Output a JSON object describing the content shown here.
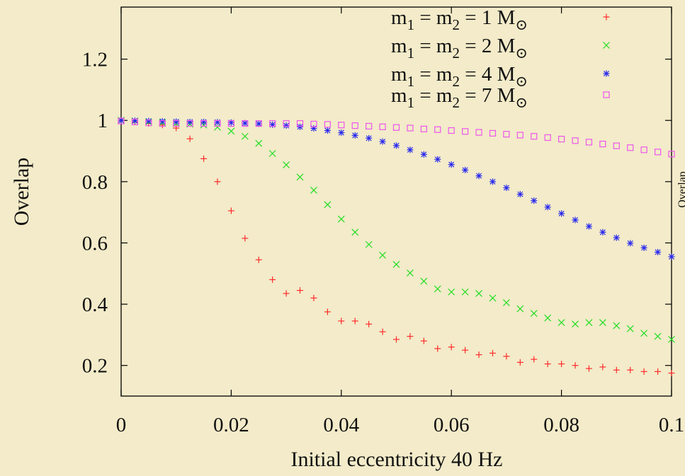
{
  "chart_data": {
    "type": "scatter",
    "xlabel": "Initial eccentricity 40 Hz",
    "ylabel": "Overlap",
    "right_clipped_label": "Overlap",
    "xlim": [
      0,
      0.1
    ],
    "ylim": [
      0.1,
      1.37
    ],
    "x_ticks": [
      0,
      0.02,
      0.04,
      0.06,
      0.08,
      0.1
    ],
    "x_tick_labels": [
      "0",
      "0.02",
      "0.04",
      "0.06",
      "0.08",
      "0.1"
    ],
    "y_ticks": [
      0.2,
      0.4,
      0.6,
      0.8,
      1.0,
      1.2
    ],
    "y_tick_labels": [
      "0.2",
      "0.4",
      "0.6",
      "0.8",
      "1",
      "1.2"
    ],
    "legend_position": "top-right",
    "series": [
      {
        "name": "m1 = m2 = 1 M⊙",
        "legend": {
          "a": "m",
          "s1": "1",
          "mid": " = m",
          "s2": "2",
          "rest": " = 1 M",
          "sun": "⊙"
        },
        "marker": "plus",
        "color": "#ff2a2a",
        "x": [
          0,
          0.0025,
          0.005,
          0.0075,
          0.01,
          0.0125,
          0.015,
          0.0175,
          0.02,
          0.0225,
          0.025,
          0.0275,
          0.03,
          0.0325,
          0.035,
          0.0375,
          0.04,
          0.0425,
          0.045,
          0.0475,
          0.05,
          0.0525,
          0.055,
          0.0575,
          0.06,
          0.0625,
          0.065,
          0.0675,
          0.07,
          0.0725,
          0.075,
          0.0775,
          0.08,
          0.0825,
          0.085,
          0.0875,
          0.09,
          0.0925,
          0.095,
          0.0975,
          0.1
        ],
        "y": [
          1.0,
          0.995,
          0.99,
          0.985,
          0.975,
          0.94,
          0.875,
          0.8,
          0.705,
          0.615,
          0.545,
          0.48,
          0.435,
          0.445,
          0.42,
          0.375,
          0.345,
          0.345,
          0.335,
          0.31,
          0.285,
          0.295,
          0.28,
          0.255,
          0.26,
          0.25,
          0.235,
          0.24,
          0.23,
          0.21,
          0.22,
          0.205,
          0.205,
          0.2,
          0.19,
          0.195,
          0.185,
          0.185,
          0.18,
          0.18,
          0.175
        ]
      },
      {
        "name": "m1 = m2 = 2 M⊙",
        "legend": {
          "a": "m",
          "s1": "1",
          "mid": " = m",
          "s2": "2",
          "rest": " = 2 M",
          "sun": "⊙"
        },
        "marker": "cross",
        "color": "#22dd22",
        "x": [
          0,
          0.0025,
          0.005,
          0.0075,
          0.01,
          0.0125,
          0.015,
          0.0175,
          0.02,
          0.0225,
          0.025,
          0.0275,
          0.03,
          0.0325,
          0.035,
          0.0375,
          0.04,
          0.0425,
          0.045,
          0.0475,
          0.05,
          0.0525,
          0.055,
          0.0575,
          0.06,
          0.0625,
          0.065,
          0.0675,
          0.07,
          0.0725,
          0.075,
          0.0775,
          0.08,
          0.0825,
          0.085,
          0.0875,
          0.09,
          0.0925,
          0.095,
          0.0975,
          0.1
        ],
        "y": [
          1.0,
          0.998,
          0.995,
          0.993,
          0.99,
          0.988,
          0.985,
          0.978,
          0.965,
          0.948,
          0.925,
          0.892,
          0.855,
          0.815,
          0.772,
          0.725,
          0.678,
          0.635,
          0.595,
          0.56,
          0.53,
          0.502,
          0.475,
          0.45,
          0.44,
          0.44,
          0.435,
          0.42,
          0.405,
          0.385,
          0.37,
          0.355,
          0.34,
          0.335,
          0.34,
          0.34,
          0.33,
          0.32,
          0.305,
          0.295,
          0.285
        ]
      },
      {
        "name": "m1 = m2 = 4 M⊙",
        "legend": {
          "a": "m",
          "s1": "1",
          "mid": " = m",
          "s2": "2",
          "rest": " = 4 M",
          "sun": "⊙"
        },
        "marker": "star",
        "color": "#2828ee",
        "x": [
          0,
          0.0025,
          0.005,
          0.0075,
          0.01,
          0.0125,
          0.015,
          0.0175,
          0.02,
          0.0225,
          0.025,
          0.0275,
          0.03,
          0.0325,
          0.035,
          0.0375,
          0.04,
          0.0425,
          0.045,
          0.0475,
          0.05,
          0.0525,
          0.055,
          0.0575,
          0.06,
          0.0625,
          0.065,
          0.0675,
          0.07,
          0.0725,
          0.075,
          0.0775,
          0.08,
          0.0825,
          0.085,
          0.0875,
          0.09,
          0.0925,
          0.095,
          0.0975,
          0.1
        ],
        "y": [
          1.0,
          0.999,
          0.998,
          0.997,
          0.996,
          0.995,
          0.995,
          0.994,
          0.993,
          0.991,
          0.989,
          0.986,
          0.983,
          0.979,
          0.974,
          0.967,
          0.96,
          0.951,
          0.942,
          0.931,
          0.918,
          0.904,
          0.889,
          0.873,
          0.856,
          0.838,
          0.819,
          0.8,
          0.78,
          0.759,
          0.738,
          0.717,
          0.696,
          0.675,
          0.654,
          0.635,
          0.617,
          0.599,
          0.584,
          0.57,
          0.555
        ]
      },
      {
        "name": "m1 = m2 = 7 M⊙",
        "legend": {
          "a": "m",
          "s1": "1",
          "mid": " = m",
          "s2": "2",
          "rest": " = 7 M",
          "sun": "⊙"
        },
        "marker": "square",
        "color": "#ee55ee",
        "x": [
          0,
          0.0025,
          0.005,
          0.0075,
          0.01,
          0.0125,
          0.015,
          0.0175,
          0.02,
          0.0225,
          0.025,
          0.0275,
          0.03,
          0.0325,
          0.035,
          0.0375,
          0.04,
          0.0425,
          0.045,
          0.0475,
          0.05,
          0.0525,
          0.055,
          0.0575,
          0.06,
          0.0625,
          0.065,
          0.0675,
          0.07,
          0.0725,
          0.075,
          0.0775,
          0.08,
          0.0825,
          0.085,
          0.0875,
          0.09,
          0.0925,
          0.095,
          0.0975,
          0.1
        ],
        "y": [
          0.998,
          0.995,
          0.992,
          0.99,
          0.99,
          0.99,
          0.99,
          0.99,
          0.99,
          0.99,
          0.99,
          0.99,
          0.99,
          0.99,
          0.988,
          0.987,
          0.985,
          0.983,
          0.981,
          0.979,
          0.977,
          0.975,
          0.972,
          0.97,
          0.967,
          0.964,
          0.961,
          0.958,
          0.955,
          0.952,
          0.948,
          0.944,
          0.939,
          0.934,
          0.929,
          0.923,
          0.917,
          0.911,
          0.904,
          0.897,
          0.89
        ]
      }
    ]
  }
}
